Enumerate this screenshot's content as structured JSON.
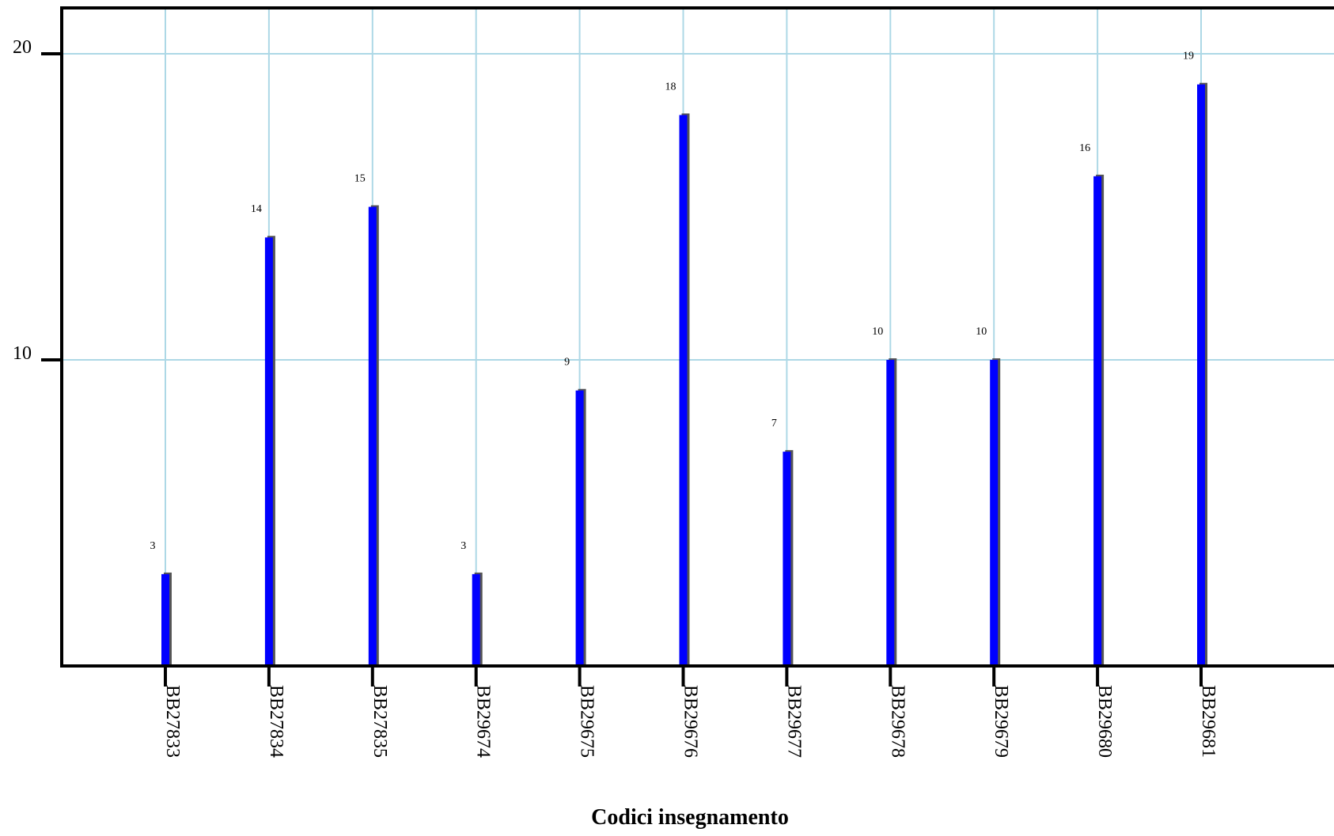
{
  "chart_data": {
    "type": "bar",
    "title": "",
    "xlabel": "Codici insegnamento",
    "ylabel": "",
    "categories": [
      "BB27833",
      "BB27834",
      "BB27835",
      "BB29674",
      "BB29675",
      "BB29676",
      "BB29677",
      "BB29678",
      "BB29679",
      "BB29680",
      "BB29681"
    ],
    "values": [
      3,
      14,
      15,
      3,
      9,
      18,
      7,
      10,
      10,
      16,
      19
    ],
    "value_labels": [
      "3",
      "14",
      "15",
      "3",
      "9",
      "18",
      "7",
      "10",
      "10",
      "16",
      "19"
    ],
    "ylim": [
      0,
      21.5
    ],
    "yticks": [
      10,
      20
    ],
    "ytick_labels": [
      "10",
      "20"
    ],
    "grid": true,
    "legend": "none",
    "colors": {
      "bar": "#0000ff",
      "bar_shadow": "#555555",
      "grid": "#add8e6",
      "axis": "#000000"
    }
  }
}
